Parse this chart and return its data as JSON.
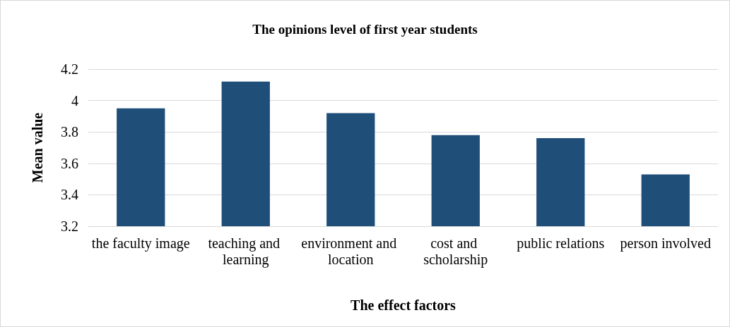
{
  "chart_data": {
    "type": "bar",
    "title": "The opinions level of first year students",
    "xlabel": "The effect factors",
    "ylabel": "Mean value",
    "categories": [
      "the faculty image",
      "teaching and learning",
      "environment and location",
      "cost and scholarship",
      "public relations",
      "person involved"
    ],
    "values": [
      3.95,
      4.12,
      3.92,
      3.78,
      3.76,
      3.53
    ],
    "color": "#1f4e79",
    "ylim": [
      3.2,
      4.2
    ],
    "yticks": [
      3.2,
      3.4,
      3.6,
      3.8,
      4,
      4.2
    ],
    "grid": "y"
  }
}
